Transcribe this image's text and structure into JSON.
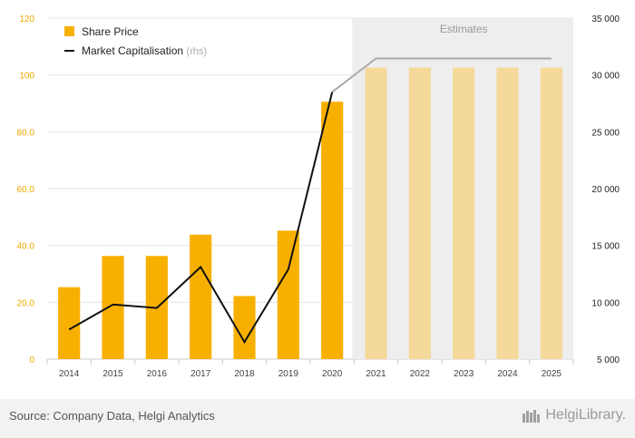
{
  "chart_data": {
    "type": "bar",
    "categories": [
      "2014",
      "2015",
      "2016",
      "2017",
      "2018",
      "2019",
      "2020",
      "2021",
      "2022",
      "2023",
      "2024",
      "2025"
    ],
    "series": [
      {
        "name": "Share Price",
        "type": "bar",
        "axis": "left",
        "values": [
          25.3,
          36.3,
          36.3,
          43.8,
          22.2,
          45.2,
          90.6,
          102.6,
          102.6,
          102.6,
          102.6,
          102.6
        ],
        "color": "#f8b000",
        "estimate_color": "#f5d99a"
      },
      {
        "name": "Market Capitalisation",
        "name_suffix": "(rhs)",
        "type": "line",
        "axis": "right",
        "values": [
          7600,
          9800,
          9500,
          13100,
          6500,
          12900,
          28500,
          31450,
          31450,
          31450,
          31450,
          31450
        ],
        "color": "#111111",
        "estimate_color": "#aaaaaa"
      }
    ],
    "estimates": {
      "label": "Estimates",
      "from": "2021",
      "to": "2025",
      "shade": "#eeeeee"
    },
    "y_left": {
      "ylim": [
        0,
        120
      ],
      "ticks": [
        "0",
        "20.0",
        "40.0",
        "60.0",
        "80.0",
        "100",
        "120"
      ],
      "tick_color": "#f0a800"
    },
    "y_right": {
      "ylim": [
        5000,
        35000
      ],
      "ticks": [
        "5 000",
        "10 000",
        "15 000",
        "20 000",
        "25 000",
        "30 000",
        "35 000"
      ]
    },
    "grid": true,
    "legend": "top-left"
  },
  "footer": {
    "source": "Source: Company Data, Helgi Analytics",
    "brand": "HelgiLibrary."
  }
}
